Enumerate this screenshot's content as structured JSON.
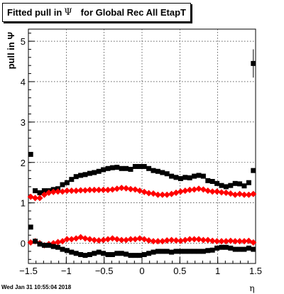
{
  "title": {
    "prefix": "Fitted pull in ",
    "symbol": "Ψ",
    "suffix": "for Global Rec All EtapT"
  },
  "datestamp": "Wed Jan 31 10:55:04 2018",
  "colors": {
    "black_series": "#000000",
    "red_series": "#ff0000",
    "grid": "#000000"
  },
  "chart_data": {
    "type": "scatter",
    "title": "Fitted pull in Ψ for Global Rec All EtapT",
    "xlabel": "η",
    "ylabel": "pull in Ψ",
    "xlim": [
      -1.5,
      1.5
    ],
    "ylim": [
      -0.5,
      5.3
    ],
    "grid": true,
    "x_ticks": [
      {
        "v": -1.5,
        "label": "−1.5"
      },
      {
        "v": -1,
        "label": "−1"
      },
      {
        "v": -0.5,
        "label": "−0.5"
      },
      {
        "v": 0,
        "label": "0"
      },
      {
        "v": 0.5,
        "label": "0.5"
      },
      {
        "v": 1,
        "label": "1"
      },
      {
        "v": 1.5,
        "label": "1.5"
      }
    ],
    "y_ticks": [
      {
        "v": 0,
        "label": "0"
      },
      {
        "v": 1,
        "label": "1"
      },
      {
        "v": 2,
        "label": "2"
      },
      {
        "v": 3,
        "label": "3"
      },
      {
        "v": 4,
        "label": "4"
      },
      {
        "v": 5,
        "label": "5"
      }
    ],
    "x": [
      -1.47,
      -1.41,
      -1.35,
      -1.29,
      -1.23,
      -1.17,
      -1.11,
      -1.05,
      -0.99,
      -0.93,
      -0.87,
      -0.81,
      -0.75,
      -0.69,
      -0.63,
      -0.57,
      -0.51,
      -0.45,
      -0.39,
      -0.33,
      -0.27,
      -0.21,
      -0.15,
      -0.09,
      -0.03,
      0.03,
      0.09,
      0.15,
      0.21,
      0.27,
      0.33,
      0.39,
      0.45,
      0.51,
      0.57,
      0.63,
      0.69,
      0.75,
      0.81,
      0.87,
      0.93,
      0.99,
      1.05,
      1.11,
      1.17,
      1.23,
      1.29,
      1.35,
      1.41,
      1.47
    ],
    "series": [
      {
        "marker": "square",
        "color": "#000000",
        "values": [
          2.2,
          1.3,
          1.25,
          1.3,
          1.3,
          1.33,
          1.35,
          1.45,
          1.5,
          1.58,
          1.65,
          1.68,
          1.7,
          1.73,
          1.75,
          1.78,
          1.82,
          1.85,
          1.87,
          1.88,
          1.85,
          1.85,
          1.83,
          1.9,
          1.9,
          1.9,
          1.85,
          1.8,
          1.78,
          1.75,
          1.72,
          1.66,
          1.63,
          1.6,
          1.63,
          1.62,
          1.66,
          1.68,
          1.66,
          1.55,
          1.53,
          1.48,
          1.43,
          1.4,
          1.43,
          1.48,
          1.47,
          1.42,
          1.5,
          1.8
        ]
      },
      {
        "marker": "square",
        "color": "#000000",
        "values": [
          4.45
        ]
      },
      {
        "marker": "diamond",
        "color": "#ff0000",
        "values": [
          1.15,
          1.12,
          1.12,
          1.2,
          1.25,
          1.27,
          1.28,
          1.28,
          1.3,
          1.3,
          1.3,
          1.31,
          1.31,
          1.32,
          1.32,
          1.32,
          1.32,
          1.32,
          1.33,
          1.35,
          1.37,
          1.36,
          1.34,
          1.33,
          1.3,
          1.27,
          1.24,
          1.23,
          1.2,
          1.2,
          1.2,
          1.22,
          1.25,
          1.28,
          1.3,
          1.32,
          1.33,
          1.35,
          1.33,
          1.3,
          1.28,
          1.28,
          1.26,
          1.25,
          1.23,
          1.2,
          1.22,
          1.2,
          1.2,
          1.22
        ]
      },
      {
        "marker": "diamond",
        "color": "#ff0000",
        "values": [
          0.02,
          0.05,
          0.0,
          -0.05,
          -0.02,
          0.0,
          0.03,
          0.05,
          0.1,
          0.1,
          0.12,
          0.15,
          0.12,
          0.1,
          0.08,
          0.07,
          0.08,
          0.1,
          0.12,
          0.1,
          0.08,
          0.08,
          0.1,
          0.1,
          0.12,
          0.1,
          0.07,
          0.05,
          0.05,
          0.05,
          0.07,
          0.08,
          0.07,
          0.06,
          0.08,
          0.1,
          0.1,
          0.1,
          0.08,
          0.08,
          0.06,
          0.05,
          0.05,
          0.05,
          0.06,
          0.05,
          0.05,
          0.05,
          0.06,
          0.02
        ]
      },
      {
        "marker": "square",
        "color": "#000000",
        "values": [
          0.4,
          0.05,
          -0.02,
          -0.05,
          -0.05,
          -0.08,
          -0.1,
          -0.15,
          -0.18,
          -0.22,
          -0.25,
          -0.28,
          -0.3,
          -0.28,
          -0.25,
          -0.22,
          -0.25,
          -0.28,
          -0.28,
          -0.25,
          -0.25,
          -0.27,
          -0.3,
          -0.3,
          -0.3,
          -0.28,
          -0.25,
          -0.22,
          -0.2,
          -0.2,
          -0.2,
          -0.22,
          -0.2,
          -0.2,
          -0.2,
          -0.2,
          -0.2,
          -0.2,
          -0.2,
          -0.18,
          -0.17,
          -0.12,
          -0.1,
          -0.1,
          -0.12,
          -0.15,
          -0.15,
          -0.15,
          -0.12,
          -0.15
        ]
      }
    ]
  }
}
